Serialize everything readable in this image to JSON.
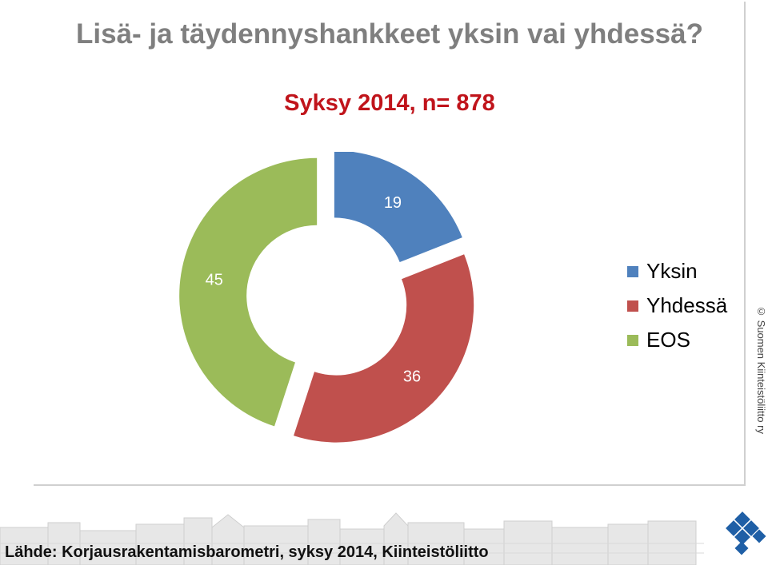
{
  "chart_data": {
    "type": "pie",
    "title": "Lisä- ja täydennyshankkeet yksin vai yhdessä?",
    "subtitle": "Syksy 2014, n= 878",
    "categories": [
      "Yksin",
      "Yhdessä",
      "EOS"
    ],
    "values": [
      19,
      36,
      45
    ],
    "colors": [
      "#4f81bd",
      "#c0504d",
      "#9bbb59"
    ],
    "style": "donut",
    "legend": "right"
  },
  "copyright": "© Suomen Kiinteistöliitto ry",
  "source": "Lähde: Korjausrakentamisbarometri, syksy 2014, Kiinteistöliitto",
  "logo_icon": "diamond-tiles-logo-icon"
}
